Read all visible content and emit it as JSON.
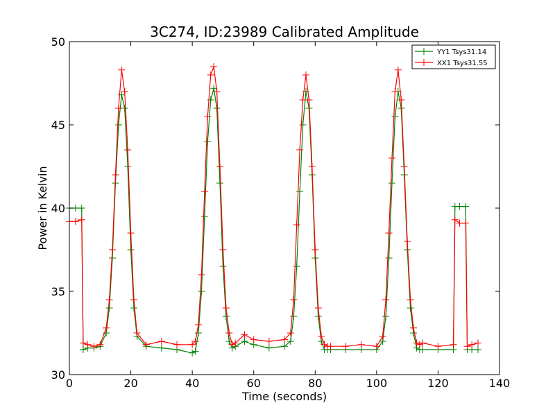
{
  "chart_data": {
    "type": "line",
    "title": "3C274, ID:23989 Calibrated Amplitude",
    "xlabel": "Time (seconds)",
    "ylabel": "Power in Kelvin",
    "xlim": [
      0,
      140
    ],
    "ylim": [
      30,
      50
    ],
    "xticks": [
      0,
      20,
      40,
      60,
      80,
      100,
      120,
      140
    ],
    "yticks": [
      30,
      35,
      40,
      45,
      50
    ],
    "grid": false,
    "legend_position": "top-right",
    "marker": "plus",
    "series": [
      {
        "name": "YY1 Tsys31.14",
        "color": "#008000",
        "x": [
          0,
          2,
          4,
          4.5,
          6,
          8,
          10,
          12,
          13,
          14,
          15,
          16,
          17,
          18,
          19,
          20,
          21,
          22,
          25,
          30,
          35,
          40,
          41,
          42,
          43,
          44,
          45,
          46,
          47,
          48,
          49,
          50,
          51,
          52,
          53,
          54,
          57,
          60,
          65,
          70,
          72,
          73,
          74,
          75,
          76,
          77,
          78,
          79,
          80,
          81,
          82,
          83,
          84,
          85,
          90,
          95,
          100,
          102,
          103,
          104,
          105,
          106,
          107,
          108,
          109,
          110,
          111,
          112,
          113,
          114,
          115,
          120,
          125,
          125.5,
          127,
          129,
          129.5,
          131,
          133
        ],
        "values": [
          40.0,
          40.0,
          40.0,
          31.5,
          31.6,
          31.6,
          31.7,
          32.5,
          34.0,
          37.0,
          41.5,
          45.0,
          46.8,
          46.0,
          42.5,
          37.5,
          34.0,
          32.3,
          31.7,
          31.6,
          31.5,
          31.3,
          31.4,
          32.5,
          35.0,
          39.5,
          44.0,
          46.5,
          47.2,
          46.0,
          41.5,
          36.5,
          33.5,
          32.0,
          31.6,
          31.7,
          32.0,
          31.8,
          31.6,
          31.7,
          32.0,
          33.5,
          36.5,
          41.0,
          45.0,
          47.0,
          46.0,
          42.0,
          37.0,
          33.5,
          32.0,
          31.5,
          31.5,
          31.5,
          31.5,
          31.5,
          31.5,
          32.0,
          33.5,
          37.0,
          41.5,
          45.5,
          47.0,
          46.0,
          42.0,
          37.5,
          34.0,
          32.5,
          31.6,
          31.5,
          31.5,
          31.5,
          31.5,
          40.1,
          40.1,
          40.1,
          31.5,
          31.5,
          31.5
        ]
      },
      {
        "name": "XX1 Tsys31.55",
        "color": "#ff0000",
        "x": [
          0,
          2,
          4,
          4.5,
          6,
          8,
          10,
          12,
          13,
          14,
          15,
          16,
          17,
          18,
          19,
          20,
          21,
          22,
          25,
          30,
          35,
          40,
          41,
          42,
          43,
          44,
          45,
          46,
          47,
          48,
          49,
          50,
          51,
          52,
          53,
          54,
          57,
          60,
          65,
          70,
          72,
          73,
          74,
          75,
          76,
          77,
          78,
          79,
          80,
          81,
          82,
          83,
          84,
          85,
          90,
          95,
          100,
          102,
          103,
          104,
          105,
          106,
          107,
          108,
          109,
          110,
          111,
          112,
          113,
          114,
          115,
          120,
          125,
          125.5,
          127,
          129,
          129.5,
          131,
          133
        ],
        "values": [
          39.2,
          39.2,
          39.3,
          31.9,
          31.8,
          31.7,
          31.8,
          32.8,
          34.5,
          37.5,
          42.0,
          46.0,
          48.3,
          47.0,
          43.5,
          38.5,
          34.5,
          32.5,
          31.8,
          32.0,
          31.8,
          31.8,
          32.0,
          33.0,
          36.0,
          41.0,
          45.5,
          48.0,
          48.5,
          47.0,
          42.5,
          37.5,
          34.0,
          32.5,
          31.8,
          31.9,
          32.4,
          32.1,
          32.0,
          32.1,
          32.5,
          34.5,
          39.0,
          43.5,
          46.5,
          48.0,
          46.5,
          42.5,
          37.5,
          34.0,
          32.3,
          31.8,
          31.7,
          31.7,
          31.7,
          31.8,
          31.7,
          32.3,
          34.5,
          38.5,
          43.0,
          47.0,
          48.3,
          46.5,
          42.5,
          38.0,
          34.5,
          32.8,
          31.9,
          31.8,
          31.9,
          31.7,
          31.8,
          39.3,
          39.1,
          39.1,
          31.7,
          31.8,
          31.9
        ]
      }
    ]
  }
}
